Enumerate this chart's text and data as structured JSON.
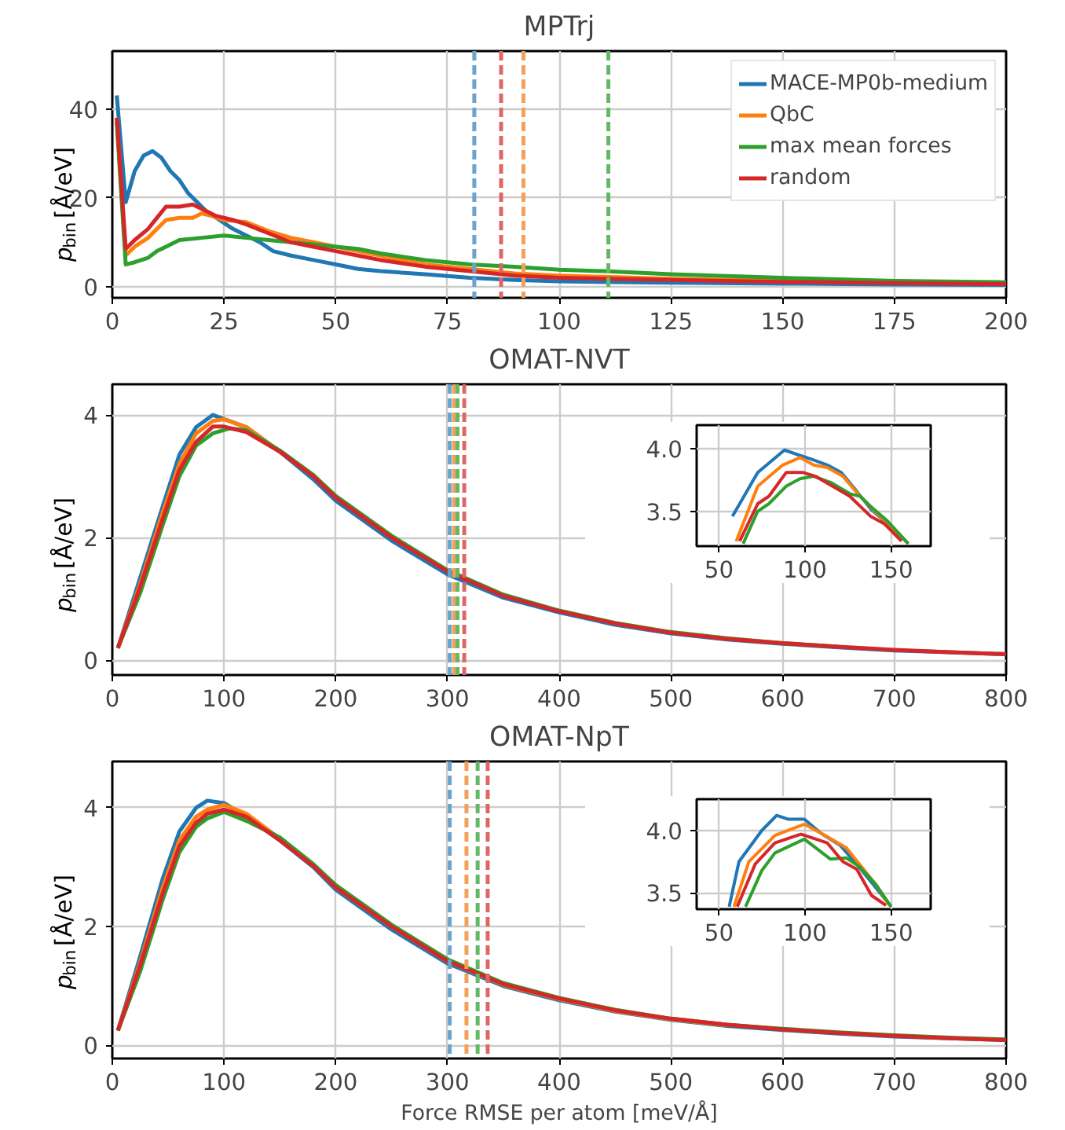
{
  "chart_data": [
    {
      "type": "line",
      "title": "MPTrj",
      "ylabel": "p$_{bin}$ [Å/eV]",
      "xlim": [
        0,
        200
      ],
      "ylim": [
        -2.5,
        53
      ],
      "xticks": [
        0,
        25,
        50,
        75,
        100,
        125,
        150,
        175,
        200
      ],
      "yticks": [
        0,
        20,
        40
      ],
      "grid": true,
      "legend": "top right",
      "series": [
        {
          "name": "MACE-MP0b-medium",
          "color": "#1f77b4",
          "x": [
            1,
            3,
            5,
            7,
            9,
            11,
            13,
            15,
            17,
            19,
            21,
            24,
            27,
            30,
            33,
            36,
            40,
            45,
            50,
            55,
            60,
            70,
            80,
            90,
            100,
            125,
            150,
            175,
            200
          ],
          "values": [
            43,
            19,
            26,
            29.5,
            30.5,
            29,
            26,
            24,
            21,
            19,
            17,
            15,
            13,
            11.5,
            10,
            8,
            7,
            6,
            5,
            4,
            3.5,
            2.8,
            2,
            1.5,
            1.2,
            0.9,
            0.7,
            0.5,
            0.4
          ]
        },
        {
          "name": "QbC",
          "color": "#ff7f0e",
          "x": [
            1,
            3,
            5,
            8,
            10,
            12,
            15,
            18,
            20,
            22,
            25,
            30,
            35,
            40,
            45,
            50,
            55,
            60,
            70,
            80,
            90,
            100,
            125,
            150,
            175,
            200
          ],
          "values": [
            38,
            7,
            9,
            11,
            13,
            15,
            15.5,
            15.5,
            16.5,
            16,
            15,
            14.5,
            12.5,
            11,
            10,
            9,
            8,
            7,
            5,
            4,
            3,
            2.5,
            1.8,
            1.3,
            1,
            0.7
          ]
        },
        {
          "name": "max mean forces",
          "color": "#2ca02c",
          "x": [
            1,
            3,
            5,
            8,
            10,
            12,
            15,
            20,
            25,
            30,
            35,
            40,
            45,
            50,
            55,
            60,
            70,
            80,
            90,
            100,
            110,
            125,
            150,
            175,
            200
          ],
          "values": [
            37,
            5,
            5.5,
            6.5,
            8,
            9,
            10.5,
            11,
            11.5,
            11,
            10.5,
            10,
            9.5,
            9,
            8.5,
            7.5,
            6,
            5,
            4.5,
            3.8,
            3.5,
            2.8,
            2,
            1.3,
            1
          ]
        },
        {
          "name": "random",
          "color": "#d62728",
          "x": [
            1,
            3,
            5,
            8,
            10,
            12,
            15,
            18,
            20,
            23,
            27,
            30,
            35,
            40,
            45,
            50,
            55,
            60,
            70,
            80,
            90,
            100,
            125,
            150,
            175,
            200
          ],
          "values": [
            38,
            8.5,
            10.5,
            13,
            15.5,
            18,
            18,
            18.5,
            17.5,
            16,
            15,
            14,
            12,
            10,
            9,
            8,
            7,
            6,
            4.5,
            3.5,
            2.5,
            2,
            1.5,
            1.1,
            0.8,
            0.6
          ]
        }
      ],
      "ref_lines": [
        {
          "axis": "x",
          "value": 81,
          "color": "#6aa3cc",
          "line_style": "dashed"
        },
        {
          "axis": "x",
          "value": 87,
          "color": "#e06666",
          "line_style": "dashed"
        },
        {
          "axis": "x",
          "value": 92,
          "color": "#f5a05a",
          "line_style": "dashed"
        },
        {
          "axis": "x",
          "value": 111,
          "color": "#64b864",
          "line_style": "dashed"
        }
      ]
    },
    {
      "type": "line",
      "title": "OMAT-NVT",
      "ylabel": "p$_{bin}$ [Å/eV]",
      "xlim": [
        0,
        800
      ],
      "ylim": [
        -0.24,
        4.5
      ],
      "xticks": [
        0,
        100,
        200,
        300,
        400,
        500,
        600,
        700,
        800
      ],
      "yticks": [
        0,
        2,
        4
      ],
      "grid": true,
      "series": [
        {
          "color": "#1f77b4",
          "x": [
            5,
            25,
            45,
            60,
            75,
            90,
            105,
            120,
            150,
            180,
            200,
            250,
            300,
            350,
            400,
            450,
            500,
            550,
            600,
            650,
            700,
            750,
            800
          ],
          "values": [
            0.2,
            1.35,
            2.5,
            3.35,
            3.8,
            4.0,
            3.9,
            3.8,
            3.4,
            2.95,
            2.6,
            1.95,
            1.4,
            1.02,
            0.78,
            0.58,
            0.44,
            0.34,
            0.27,
            0.21,
            0.16,
            0.13,
            0.1
          ]
        },
        {
          "color": "#ff7f0e",
          "x": [
            5,
            25,
            45,
            60,
            75,
            90,
            100,
            120,
            150
          ],
          "values": [
            0.2,
            1.25,
            2.4,
            3.2,
            3.7,
            3.9,
            3.93,
            3.8,
            3.4
          ]
        },
        {
          "color": "#2ca02c",
          "x": [
            5,
            25,
            45,
            60,
            75,
            90,
            105,
            120,
            150,
            180,
            200,
            250,
            300,
            350,
            400,
            450,
            500,
            550,
            600,
            650
          ],
          "values": [
            0.2,
            1.1,
            2.2,
            3.0,
            3.5,
            3.7,
            3.78,
            3.75,
            3.42,
            3.02,
            2.68,
            2.03,
            1.47,
            1.07,
            0.81,
            0.61,
            0.46,
            0.36,
            0.28,
            0.22
          ]
        },
        {
          "color": "#d62728",
          "x": [
            5,
            25,
            45,
            60,
            75,
            90,
            100,
            120,
            150,
            180,
            200,
            250,
            300,
            350,
            400,
            450,
            500,
            550,
            600,
            650,
            700,
            750,
            800
          ],
          "values": [
            0.2,
            1.2,
            2.3,
            3.1,
            3.56,
            3.81,
            3.81,
            3.72,
            3.4,
            3.0,
            2.65,
            2.0,
            1.45,
            1.05,
            0.8,
            0.6,
            0.45,
            0.35,
            0.28,
            0.22,
            0.17,
            0.13,
            0.1
          ]
        }
      ],
      "ref_lines": [
        {
          "axis": "x",
          "value": 302,
          "color": "#6aa3cc",
          "line_style": "dashed"
        },
        {
          "axis": "x",
          "value": 306,
          "color": "#f5a05a",
          "line_style": "dashed"
        },
        {
          "axis": "x",
          "value": 309,
          "color": "#64b864",
          "line_style": "dashed"
        },
        {
          "axis": "x",
          "value": 315,
          "color": "#e06666",
          "line_style": "dashed"
        }
      ]
    },
    {
      "type": "line",
      "xlim": [
        37,
        173
      ],
      "ylim": [
        3.22,
        4.19
      ],
      "xticks": [
        50,
        100,
        150
      ],
      "yticks": [
        3.5,
        {
          "value": 4.0,
          "label": "4.0"
        }
      ],
      "grid": true,
      "series": [
        {
          "color": "#1f77b4",
          "x": [
            57.8,
            72.5,
            88,
            105,
            113,
            121,
            130,
            138,
            148,
            160
          ],
          "values": [
            3.46,
            3.81,
            3.99,
            3.91,
            3.87,
            3.81,
            3.66,
            3.52,
            3.4,
            3.24
          ]
        },
        {
          "color": "#ff7f0e",
          "x": [
            60,
            72.5,
            87,
            97,
            105,
            113,
            122,
            132,
            142,
            150,
            160
          ],
          "values": [
            3.26,
            3.7,
            3.87,
            3.93,
            3.87,
            3.85,
            3.78,
            3.62,
            3.48,
            3.38,
            3.24
          ]
        },
        {
          "color": "#2ca02c",
          "x": [
            64,
            72.5,
            79,
            89,
            97,
            105,
            115,
            126,
            132,
            138,
            148,
            160
          ],
          "values": [
            3.24,
            3.5,
            3.56,
            3.7,
            3.76,
            3.78,
            3.73,
            3.64,
            3.62,
            3.54,
            3.42,
            3.24
          ]
        },
        {
          "color": "#d62728",
          "x": [
            62,
            72.5,
            79,
            89,
            99,
            106,
            116,
            126,
            138,
            146,
            156
          ],
          "values": [
            3.26,
            3.56,
            3.62,
            3.81,
            3.81,
            3.78,
            3.7,
            3.62,
            3.46,
            3.4,
            3.26
          ]
        }
      ]
    },
    {
      "type": "line",
      "title": "OMAT-NpT",
      "xlabel": "Force RMSE per atom [meV/Å]",
      "ylabel": "p$_{bin}$ [Å/eV]",
      "xlim": [
        0,
        800
      ],
      "ylim": [
        -0.22,
        4.78
      ],
      "xticks": [
        0,
        100,
        200,
        300,
        400,
        500,
        600,
        700,
        800
      ],
      "yticks": [
        0,
        2,
        4
      ],
      "grid": true,
      "series": [
        {
          "color": "#1f77b4",
          "x": [
            5,
            25,
            45,
            60,
            75,
            85,
            100,
            120,
            150,
            180,
            200,
            250,
            300,
            350,
            400,
            450,
            500,
            550,
            600,
            650,
            700,
            750,
            800
          ],
          "values": [
            0.25,
            1.5,
            2.8,
            3.6,
            4.0,
            4.12,
            4.08,
            3.85,
            3.45,
            3.0,
            2.62,
            1.95,
            1.38,
            1.0,
            0.76,
            0.57,
            0.43,
            0.33,
            0.26,
            0.2,
            0.15,
            0.12,
            0.09
          ]
        },
        {
          "color": "#ff7f0e",
          "x": [
            5,
            25,
            45,
            60,
            75,
            85,
            100,
            120,
            150,
            180,
            200,
            250,
            300,
            350,
            400,
            450,
            500,
            550
          ],
          "values": [
            0.25,
            1.4,
            2.65,
            3.45,
            3.85,
            3.97,
            4.05,
            3.9,
            3.48,
            3.03,
            2.66,
            2.0,
            1.42,
            1.02,
            0.78,
            0.58,
            0.44,
            0.34
          ]
        },
        {
          "color": "#2ca02c",
          "x": [
            5,
            25,
            45,
            60,
            75,
            85,
            100,
            120,
            150,
            180,
            200,
            250,
            300,
            350,
            400,
            450,
            500,
            550,
            600,
            650,
            700,
            750,
            800
          ],
          "values": [
            0.25,
            1.25,
            2.45,
            3.25,
            3.68,
            3.82,
            3.93,
            3.78,
            3.5,
            3.05,
            2.7,
            2.03,
            1.45,
            1.05,
            0.8,
            0.6,
            0.45,
            0.35,
            0.28,
            0.22,
            0.17,
            0.13,
            0.1
          ]
        },
        {
          "color": "#d62728",
          "x": [
            5,
            25,
            45,
            60,
            75,
            85,
            100,
            120,
            150,
            180,
            200,
            250,
            300,
            350,
            400,
            450,
            500,
            550,
            600,
            650,
            700,
            750,
            800
          ],
          "values": [
            0.25,
            1.35,
            2.55,
            3.35,
            3.75,
            3.9,
            3.97,
            3.85,
            3.45,
            3.02,
            2.66,
            2.0,
            1.42,
            1.03,
            0.79,
            0.59,
            0.45,
            0.35,
            0.27,
            0.21,
            0.16,
            0.12,
            0.09
          ]
        }
      ],
      "ref_lines": [
        {
          "axis": "x",
          "value": 302,
          "color": "#6aa3cc",
          "line_style": "dashed"
        },
        {
          "axis": "x",
          "value": 317,
          "color": "#f5a05a",
          "line_style": "dashed"
        },
        {
          "axis": "x",
          "value": 327,
          "color": "#64b864",
          "line_style": "dashed"
        },
        {
          "axis": "x",
          "value": 336,
          "color": "#e06666",
          "line_style": "dashed"
        }
      ]
    },
    {
      "type": "line",
      "xlim": [
        37,
        173
      ],
      "ylim": [
        3.37,
        4.25
      ],
      "xticks": [
        50,
        100,
        150
      ],
      "yticks": [
        3.5,
        {
          "value": 4.0,
          "label": "4.0"
        }
      ],
      "grid": true,
      "series": [
        {
          "color": "#1f77b4",
          "x": [
            55.9,
            61.6,
            74.9,
            83.5,
            90,
            99.6,
            109,
            120.5,
            130,
            139.5,
            150
          ],
          "values": [
            3.39,
            3.75,
            4.0,
            4.12,
            4.09,
            4.09,
            3.98,
            3.88,
            3.73,
            3.57,
            3.39
          ]
        },
        {
          "color": "#ff7f0e",
          "x": [
            58.7,
            67.3,
            82.5,
            99.6,
            112.9,
            124,
            131.6,
            141,
            149
          ],
          "values": [
            3.39,
            3.75,
            3.96,
            4.05,
            3.95,
            3.86,
            3.73,
            3.57,
            3.4
          ]
        },
        {
          "color": "#2ca02c",
          "x": [
            65.4,
            74.9,
            82.5,
            99.6,
            114.8,
            124,
            131.6,
            141,
            150
          ],
          "values": [
            3.39,
            3.68,
            3.82,
            3.93,
            3.77,
            3.78,
            3.71,
            3.57,
            3.39
          ]
        },
        {
          "color": "#d62728",
          "x": [
            60.6,
            71,
            82.5,
            97.7,
            112.9,
            122,
            130,
            138.6,
            147
          ],
          "values": [
            3.39,
            3.73,
            3.9,
            3.97,
            3.9,
            3.75,
            3.69,
            3.48,
            3.4
          ]
        }
      ]
    }
  ]
}
